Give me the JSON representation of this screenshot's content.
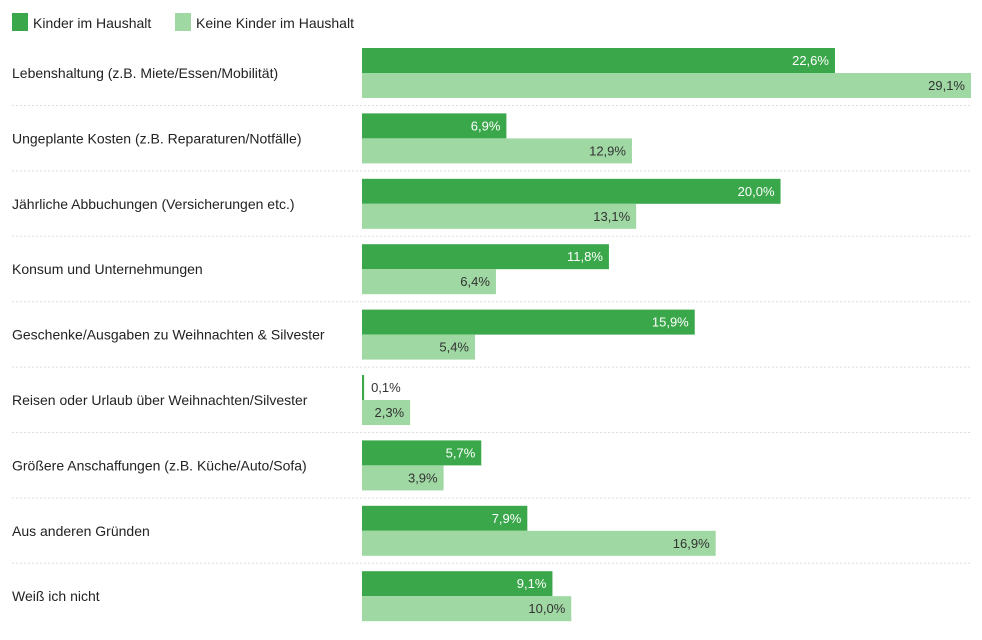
{
  "chart_data": {
    "type": "bar",
    "orientation": "horizontal",
    "categories": [
      "Lebenshaltung (z.B. Miete/Essen/Mobilität)",
      "Ungeplante Kosten (z.B. Reparaturen/Notfälle)",
      "Jährliche Abbuchungen (Versicherungen etc.)",
      "Konsum und Unternehmungen",
      "Geschenke/Ausgaben zu Weihnachten & Silvester",
      "Reisen oder Urlaub über Weihnachten/Silvester",
      "Größere Anschaffungen (z.B. Küche/Auto/Sofa)",
      "Aus anderen Gründen",
      "Weiß ich nicht"
    ],
    "series": [
      {
        "name": "Kinder im Haushalt",
        "color": "#3aa84a",
        "label_color": "#ffffff",
        "values": [
          22.6,
          6.9,
          20.0,
          11.8,
          15.9,
          0.1,
          5.7,
          7.9,
          9.1
        ],
        "labels": [
          "22,6%",
          "6,9%",
          "20,0%",
          "11,8%",
          "15,9%",
          "0,1%",
          "5,7%",
          "7,9%",
          "9,1%"
        ]
      },
      {
        "name": "Keine Kinder im Haushalt",
        "color": "#9fd8a3",
        "label_color": "#333333",
        "values": [
          29.1,
          12.9,
          13.1,
          6.4,
          5.4,
          2.3,
          3.9,
          16.9,
          10.0
        ],
        "labels": [
          "29,1%",
          "12,9%",
          "13,1%",
          "6,4%",
          "5,4%",
          "2,3%",
          "3,9%",
          "16,9%",
          "10,0%"
        ]
      }
    ],
    "xlim": [
      0,
      29.1
    ],
    "legend_position": "top-left",
    "grid": false,
    "title": "",
    "xlabel": "",
    "ylabel": ""
  }
}
